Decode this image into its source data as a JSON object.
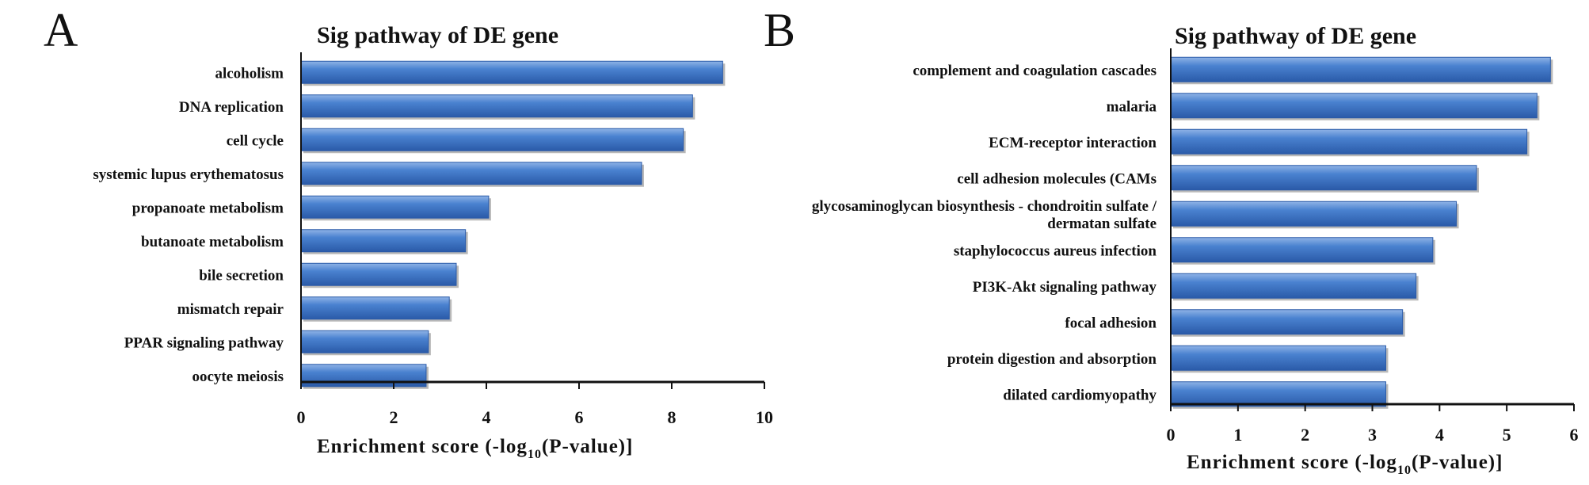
{
  "chart_data": [
    {
      "panel_label": "A",
      "type": "bar",
      "orientation": "horizontal",
      "title": "Sig pathway of DE gene",
      "xlabel_prefix": "Enrichment score (-log",
      "xlabel_sub": "10",
      "xlabel_suffix": "(P-value)]",
      "ylabel": "",
      "categories": [
        "alcoholism",
        "DNA replication",
        "cell cycle",
        "systemic lupus erythematosus",
        "propanoate metabolism",
        "butanoate metabolism",
        "bile secretion",
        "mismatch repair",
        "PPAR signaling pathway",
        "oocyte meiosis"
      ],
      "values": [
        9.1,
        8.45,
        8.25,
        7.35,
        4.05,
        3.55,
        3.35,
        3.2,
        2.75,
        2.7
      ],
      "xlim": [
        0,
        10
      ],
      "xticks": [
        "0",
        "2",
        "4",
        "6",
        "8",
        "10"
      ],
      "bar_color": "#3F74C4",
      "grid": false,
      "legend": "none"
    },
    {
      "panel_label": "B",
      "type": "bar",
      "orientation": "horizontal",
      "title": "Sig pathway of DE gene",
      "xlabel_prefix": "Enrichment score (-log",
      "xlabel_sub": "10",
      "xlabel_suffix": "(P-value)]",
      "ylabel": "",
      "categories": [
        "complement and coagulation cascades",
        "malaria",
        "ECM-receptor interaction",
        "cell adhesion molecules (CAMs",
        [
          "glycosaminoglycan biosynthesis - chondroitin sulfate /",
          "dermatan sulfate"
        ],
        "staphylococcus aureus infection",
        "PI3K-Akt signaling pathway",
        "focal adhesion",
        "protein digestion and absorption",
        "dilated cardiomyopathy"
      ],
      "values": [
        5.65,
        5.45,
        5.3,
        4.55,
        4.25,
        3.9,
        3.65,
        3.45,
        3.2,
        3.2
      ],
      "xlim": [
        0,
        6
      ],
      "xticks": [
        "0",
        "1",
        "2",
        "3",
        "4",
        "5",
        "6"
      ],
      "bar_color": "#3F74C4",
      "grid": false,
      "legend": "none"
    }
  ]
}
